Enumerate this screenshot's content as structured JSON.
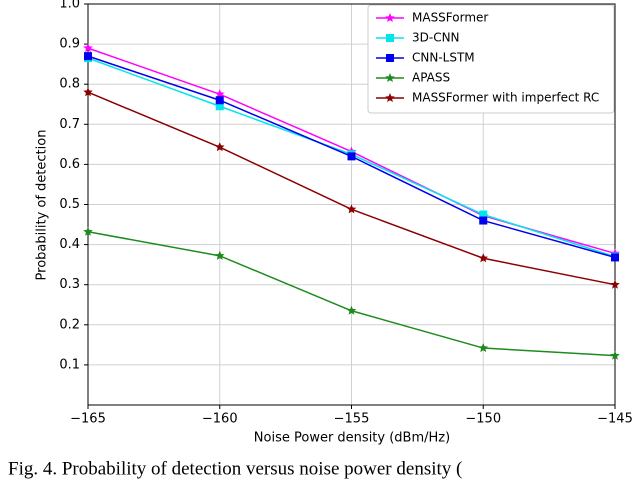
{
  "chart_data": {
    "type": "line",
    "xlabel": "Noise Power density (dBm/Hz)",
    "ylabel": "Probability of detection",
    "caption": "Fig. 4. Probability of detection versus noise power density (",
    "x": [
      -165,
      -160,
      -155,
      -150,
      -145
    ],
    "xlim": [
      -165,
      -145
    ],
    "xticks": [
      {
        "value": -165,
        "label": "−165"
      },
      {
        "value": -160,
        "label": "−160"
      },
      {
        "value": -155,
        "label": "−155"
      },
      {
        "value": -150,
        "label": "−150"
      },
      {
        "value": -145,
        "label": "−145"
      }
    ],
    "ylim": [
      0,
      1
    ],
    "yticks": [
      0.1,
      0.2,
      0.3,
      0.4,
      0.5,
      0.6,
      0.7,
      0.8,
      0.9,
      {
        "value": 1,
        "label": "1.0"
      }
    ],
    "grid": true,
    "legend": "upper right",
    "series": [
      {
        "name": "MASSFormer",
        "color": "#ff00ff",
        "marker": "star",
        "values": [
          0.89,
          0.775,
          0.632,
          0.472,
          0.378
        ]
      },
      {
        "name": "3D-CNN",
        "color": "#00e5ee",
        "marker": "square",
        "values": [
          0.865,
          0.745,
          0.625,
          0.475,
          0.37
        ]
      },
      {
        "name": "CNN-LSTM",
        "color": "#0000ee",
        "marker": "square",
        "values": [
          0.87,
          0.76,
          0.62,
          0.46,
          0.368
        ]
      },
      {
        "name": "APASS",
        "color": "#1e8b1e",
        "marker": "star",
        "values": [
          0.432,
          0.372,
          0.235,
          0.142,
          0.123
        ]
      },
      {
        "name": "MASSFormer with imperfect RC",
        "color": "#8b0000",
        "marker": "star",
        "values": [
          0.78,
          0.643,
          0.488,
          0.366,
          0.3
        ]
      }
    ]
  }
}
